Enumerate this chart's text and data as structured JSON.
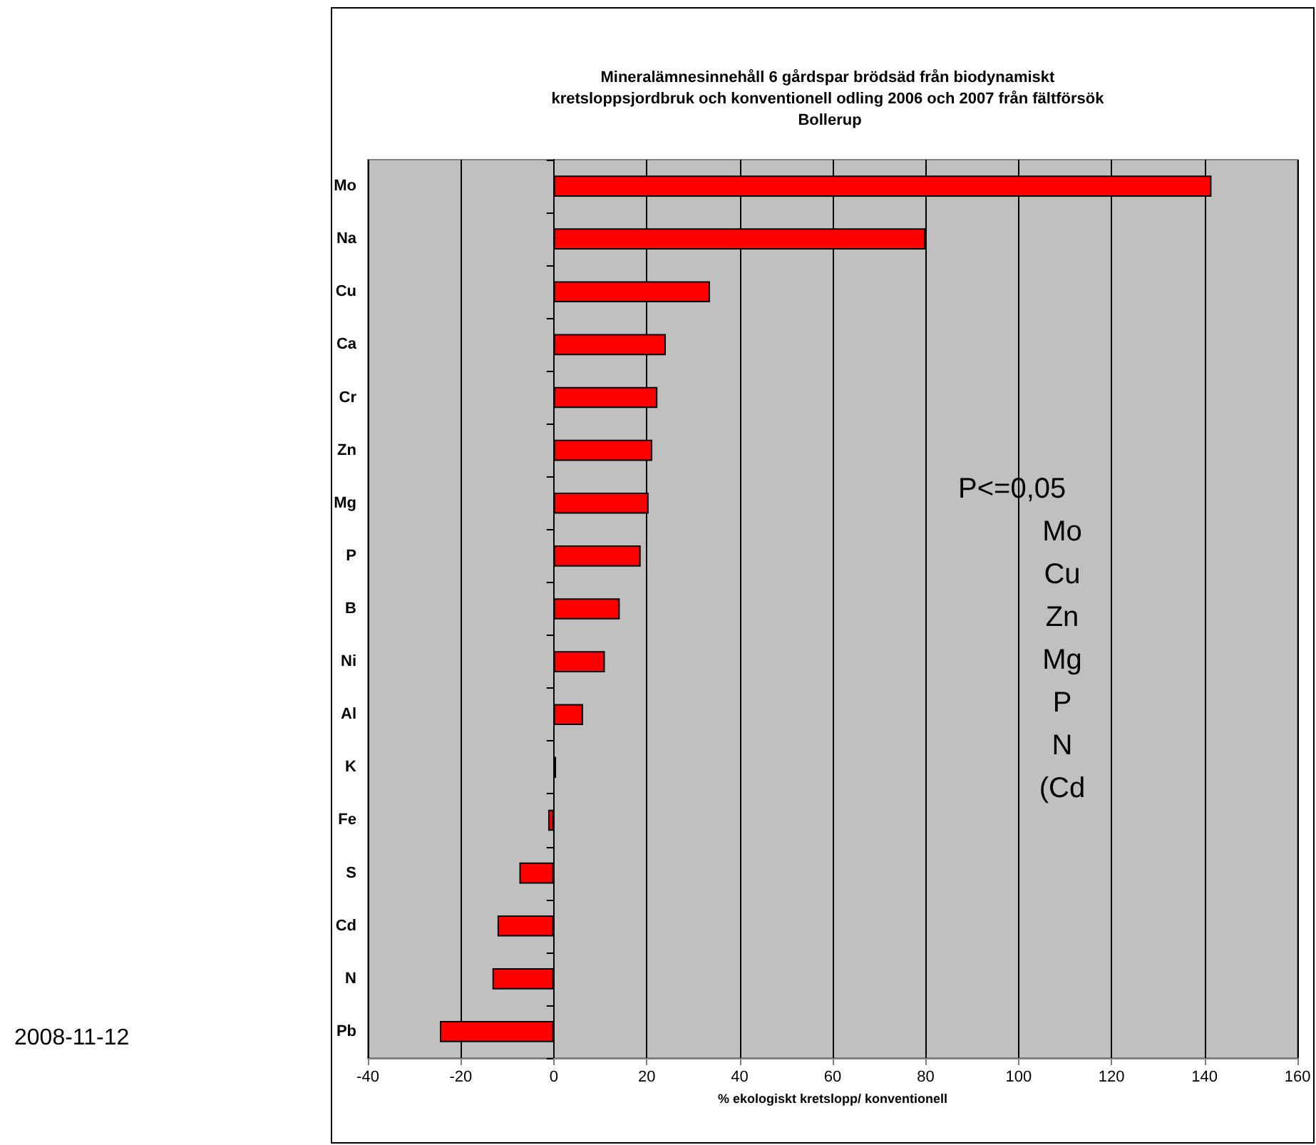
{
  "chart_data": {
    "type": "bar",
    "orientation": "horizontal",
    "title": "Mineralämnesinnehåll 6 gårdspar brödsäd från biodynamiskt kretsloppsjordbruk och konventionell odling 2006 och 2007 från fältförsök Bollerup",
    "xlabel": "% ekologiskt kretslopp/ konventionell",
    "categories": [
      "Mo",
      "Na",
      "Cu",
      "Ca",
      "Cr",
      "Zn",
      "Mg",
      "P",
      "B",
      "Ni",
      "Al",
      "K",
      "Fe",
      "S",
      "Cd",
      "N",
      "Pb"
    ],
    "values": [
      141.5,
      80,
      33.6,
      24.1,
      22.3,
      21.2,
      20.4,
      18.7,
      14.2,
      11,
      6.3,
      0.5,
      -1.2,
      -7.4,
      -12.1,
      -13.2,
      -24.5
    ],
    "color": "#ff0000",
    "xlim": [
      -40,
      160
    ],
    "xticks": [
      -40,
      -20,
      0,
      20,
      40,
      60,
      80,
      100,
      120,
      140,
      160
    ],
    "grid": "x",
    "annotations": [
      "2008-11-12",
      "P<=0,05",
      "Mo",
      "Cu",
      "Zn",
      "Mg",
      "P",
      "N",
      "(Cd"
    ]
  }
}
